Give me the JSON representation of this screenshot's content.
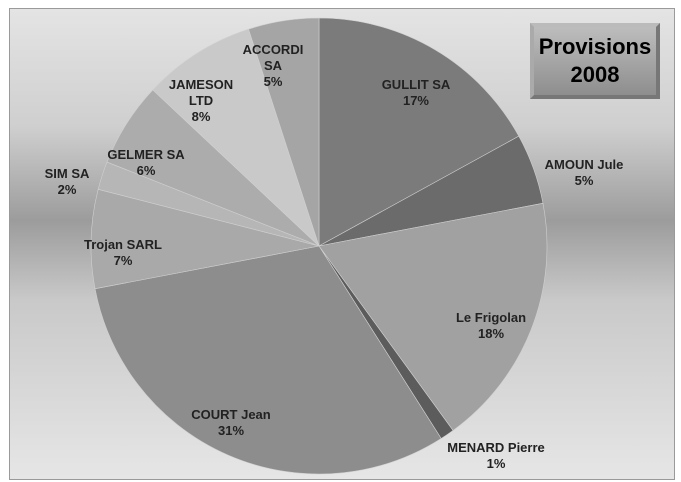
{
  "chart_data": {
    "type": "pie",
    "title": "Provisions 2008",
    "categories": [
      "GULLIT SA",
      "AMOUN Jule",
      "Le Frigolan",
      "MENARD Pierre",
      "COURT Jean",
      "Trojan SARL",
      "SIM SA",
      "GELMER SA",
      "JAMESON LTD",
      "ACCORDI SA"
    ],
    "values": [
      17,
      5,
      18,
      1,
      31,
      7,
      2,
      6,
      8,
      5
    ],
    "value_labels": [
      "17%",
      "5%",
      "18%",
      "1%",
      "31%",
      "7%",
      "2%",
      "6%",
      "8%",
      "5%"
    ],
    "colors": [
      "#7b7b7b",
      "#6b6b6b",
      "#a1a1a1",
      "#5c5c5c",
      "#8d8d8d",
      "#a9a9a9",
      "#b6b6b6",
      "#acacac",
      "#c9c9c9",
      "#a5a5a5"
    ]
  }
}
